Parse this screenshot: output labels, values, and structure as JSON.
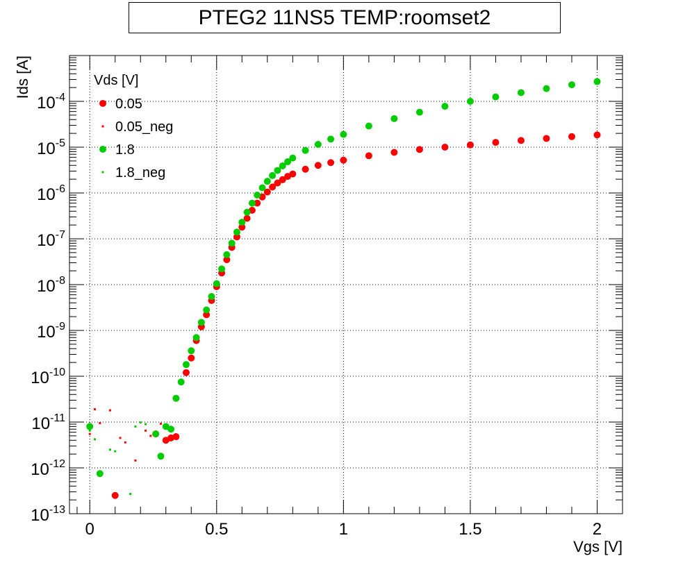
{
  "chart_data": {
    "type": "scatter",
    "title": "PTEG2 11NS5 TEMP:roomset2",
    "xlabel": "Vgs [V]",
    "ylabel": "Ids [A]",
    "x_scale": "linear",
    "y_scale": "log",
    "xlim": [
      -0.08,
      2.1
    ],
    "ylim": [
      1e-13,
      0.001
    ],
    "x_ticks": [
      {
        "value": 0,
        "label": "0"
      },
      {
        "value": 0.5,
        "label": "0.5"
      },
      {
        "value": 1,
        "label": "1"
      },
      {
        "value": 1.5,
        "label": "1.5"
      },
      {
        "value": 2,
        "label": "2"
      }
    ],
    "y_ticks": [
      {
        "value": 1e-13,
        "base": "10",
        "exp": "-13"
      },
      {
        "value": 1e-12,
        "base": "10",
        "exp": "-12"
      },
      {
        "value": 1e-11,
        "base": "10",
        "exp": "-11"
      },
      {
        "value": 1e-10,
        "base": "10",
        "exp": "-10"
      },
      {
        "value": 1e-09,
        "base": "10",
        "exp": "-9"
      },
      {
        "value": 1e-08,
        "base": "10",
        "exp": "-8"
      },
      {
        "value": 1e-07,
        "base": "10",
        "exp": "-7"
      },
      {
        "value": 1e-06,
        "base": "10",
        "exp": "-6"
      },
      {
        "value": 1e-05,
        "base": "10",
        "exp": "-5"
      },
      {
        "value": 0.0001,
        "base": "10",
        "exp": "-4"
      }
    ],
    "grid": true,
    "legend": {
      "title": "Vds [V]",
      "placement": "top-left",
      "entries": [
        "0.05",
        "0.05_neg",
        "1.8",
        "1.8_neg"
      ]
    },
    "series": [
      {
        "name": "0.05",
        "color": "#ff0000",
        "marker": "large-dot",
        "x": [
          0.1,
          0.26,
          0.3,
          0.32,
          0.34,
          0.38,
          0.4,
          0.42,
          0.44,
          0.46,
          0.48,
          0.5,
          0.52,
          0.54,
          0.56,
          0.58,
          0.6,
          0.62,
          0.64,
          0.66,
          0.68,
          0.7,
          0.72,
          0.74,
          0.76,
          0.78,
          0.8,
          0.85,
          0.9,
          0.95,
          1.0,
          1.1,
          1.2,
          1.3,
          1.4,
          1.5,
          1.6,
          1.7,
          1.8,
          1.9,
          2.0
        ],
        "y": [
          2.5e-13,
          5.5e-12,
          4e-12,
          4.5e-12,
          4.8e-12,
          1.2e-10,
          2.5e-10,
          6e-10,
          1.2e-09,
          2.2e-09,
          4.5e-09,
          9e-09,
          1.8e-08,
          3.5e-08,
          6.5e-08,
          1.1e-07,
          1.8e-07,
          2.8e-07,
          4.2e-07,
          6e-07,
          8.2e-07,
          1.05e-06,
          1.35e-06,
          1.65e-06,
          1.95e-06,
          2.3e-06,
          2.6e-06,
          3.3e-06,
          4e-06,
          4.6e-06,
          5.2e-06,
          6.5e-06,
          7.7e-06,
          8.9e-06,
          1e-05,
          1.12e-05,
          1.27e-05,
          1.4e-05,
          1.55e-05,
          1.7e-05,
          1.85e-05
        ]
      },
      {
        "name": "0.05_neg",
        "color": "#ff0000",
        "marker": "small-square",
        "x": [
          0.0,
          0.02,
          0.04,
          0.08,
          0.12,
          0.14,
          0.18,
          0.22,
          0.24,
          0.28
        ],
        "y": [
          5.5e-12,
          1.9e-11,
          9.5e-12,
          1.8e-11,
          4.5e-12,
          3.6e-12,
          1.45e-12,
          6.5e-12,
          5e-12,
          9.2e-12
        ]
      },
      {
        "name": "1.8",
        "color": "#00cc00",
        "marker": "large-dot",
        "x": [
          0.0,
          0.04,
          0.26,
          0.28,
          0.3,
          0.32,
          0.34,
          0.36,
          0.38,
          0.4,
          0.42,
          0.44,
          0.46,
          0.48,
          0.5,
          0.52,
          0.54,
          0.56,
          0.58,
          0.6,
          0.62,
          0.64,
          0.66,
          0.68,
          0.7,
          0.72,
          0.74,
          0.76,
          0.78,
          0.8,
          0.85,
          0.9,
          0.95,
          1.0,
          1.1,
          1.2,
          1.3,
          1.4,
          1.5,
          1.6,
          1.7,
          1.8,
          1.9,
          2.0
        ],
        "y": [
          8e-12,
          7.5e-13,
          5.5e-12,
          1.8e-12,
          8e-12,
          7e-12,
          3.3e-11,
          7.5e-11,
          1.8e-10,
          3.6e-10,
          7e-10,
          1.5e-09,
          2.8e-09,
          5.5e-09,
          1.05e-08,
          2.2e-08,
          4.5e-08,
          8e-08,
          1.4e-07,
          2.3e-07,
          3.8e-07,
          6e-07,
          9e-07,
          1.3e-06,
          1.8e-06,
          2.4e-06,
          3.1e-06,
          3.9e-06,
          4.8e-06,
          5.8e-06,
          8.5e-06,
          1.15e-05,
          1.5e-05,
          1.9e-05,
          2.9e-05,
          4.2e-05,
          5.8e-05,
          7.8e-05,
          0.0001,
          0.000125,
          0.000155,
          0.00019,
          0.00023,
          0.00027
        ]
      },
      {
        "name": "1.8_neg",
        "color": "#00cc00",
        "marker": "small-square",
        "x": [
          0.0,
          0.02,
          0.08,
          0.1,
          0.16,
          0.18,
          0.2,
          0.22
        ],
        "y": [
          6.5e-12,
          4.2e-12,
          2.5e-12,
          2.3e-12,
          2.7e-13,
          8e-12,
          9.8e-12,
          9e-12
        ]
      }
    ]
  }
}
